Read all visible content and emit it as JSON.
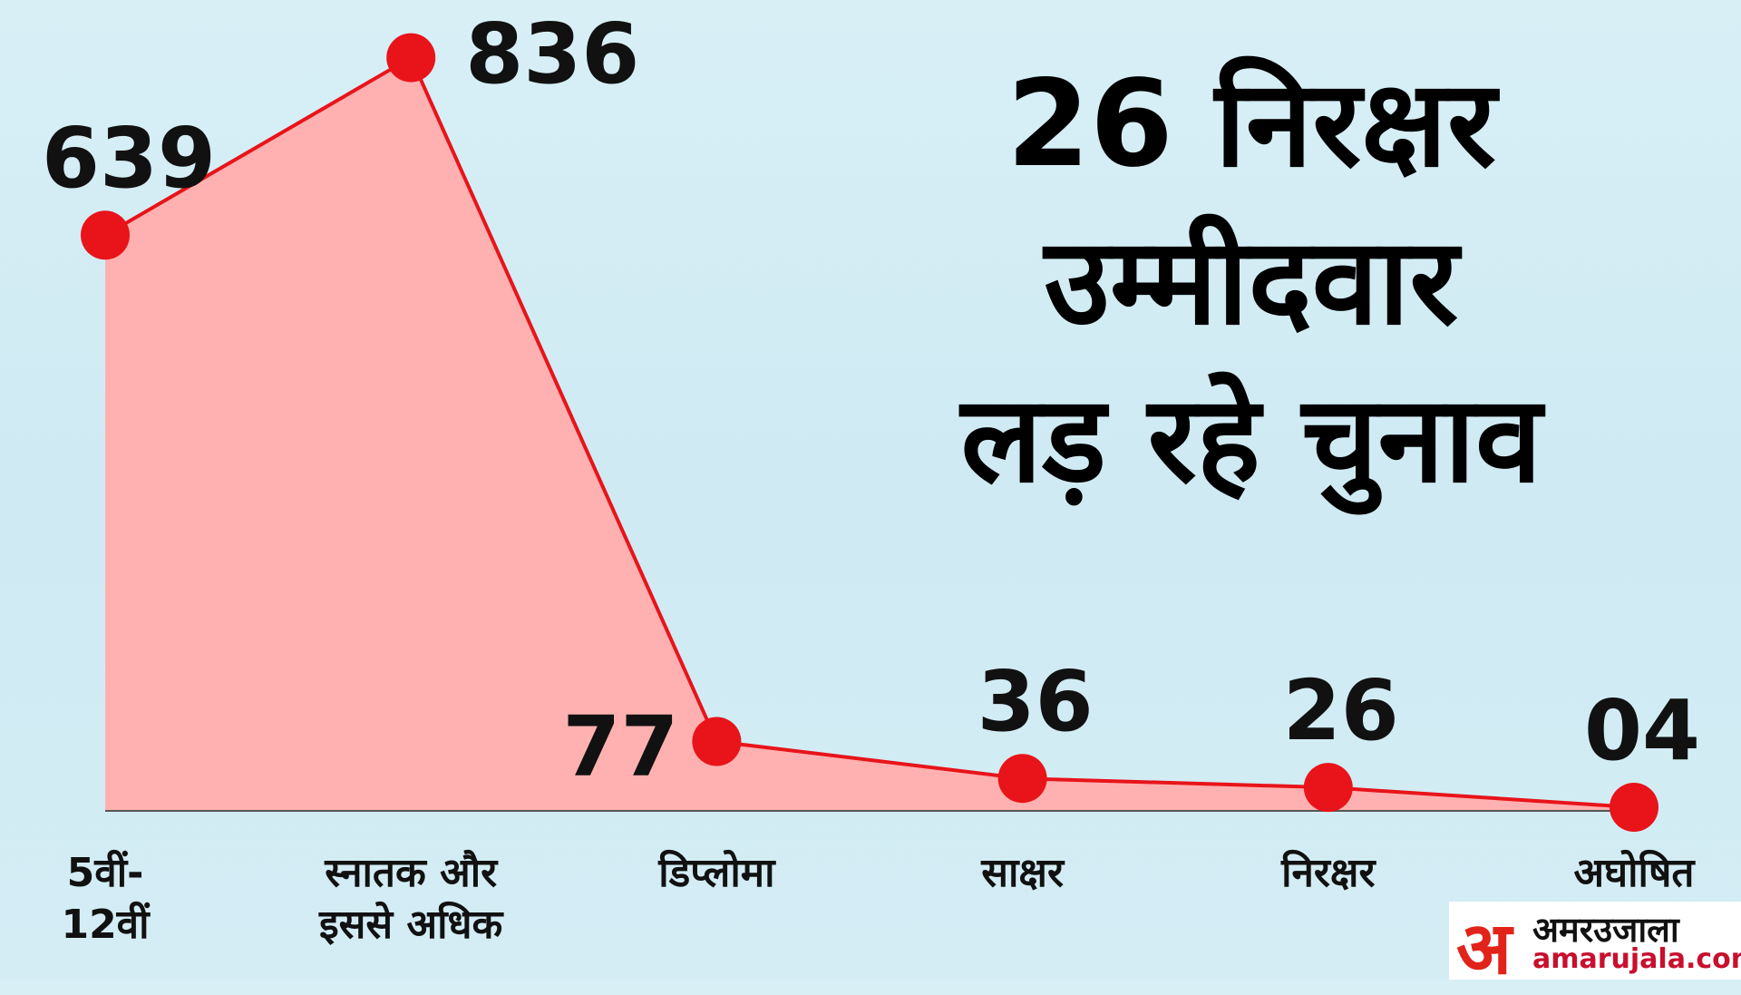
{
  "chart_data": {
    "type": "area",
    "title": "26 निरक्षर\nउम्मीदवार\nलड़ रहे चुनाव",
    "categories": [
      "5वीं-\n12वीं",
      "स्नातक और\nइससे अधिक",
      "डिप्लोमा",
      "साक्षर",
      "निरक्षर",
      "अघोषित"
    ],
    "values": [
      639,
      836,
      77,
      36,
      26,
      4
    ],
    "value_labels": [
      "639",
      "836",
      "77",
      "36",
      "26",
      "04"
    ],
    "color": "#e8141a",
    "fill": "#ffb1b1",
    "ylim": [
      0,
      900
    ]
  },
  "logo": {
    "mark": "अ",
    "name": "अमरउजाला",
    "website": "amarujala.com"
  }
}
